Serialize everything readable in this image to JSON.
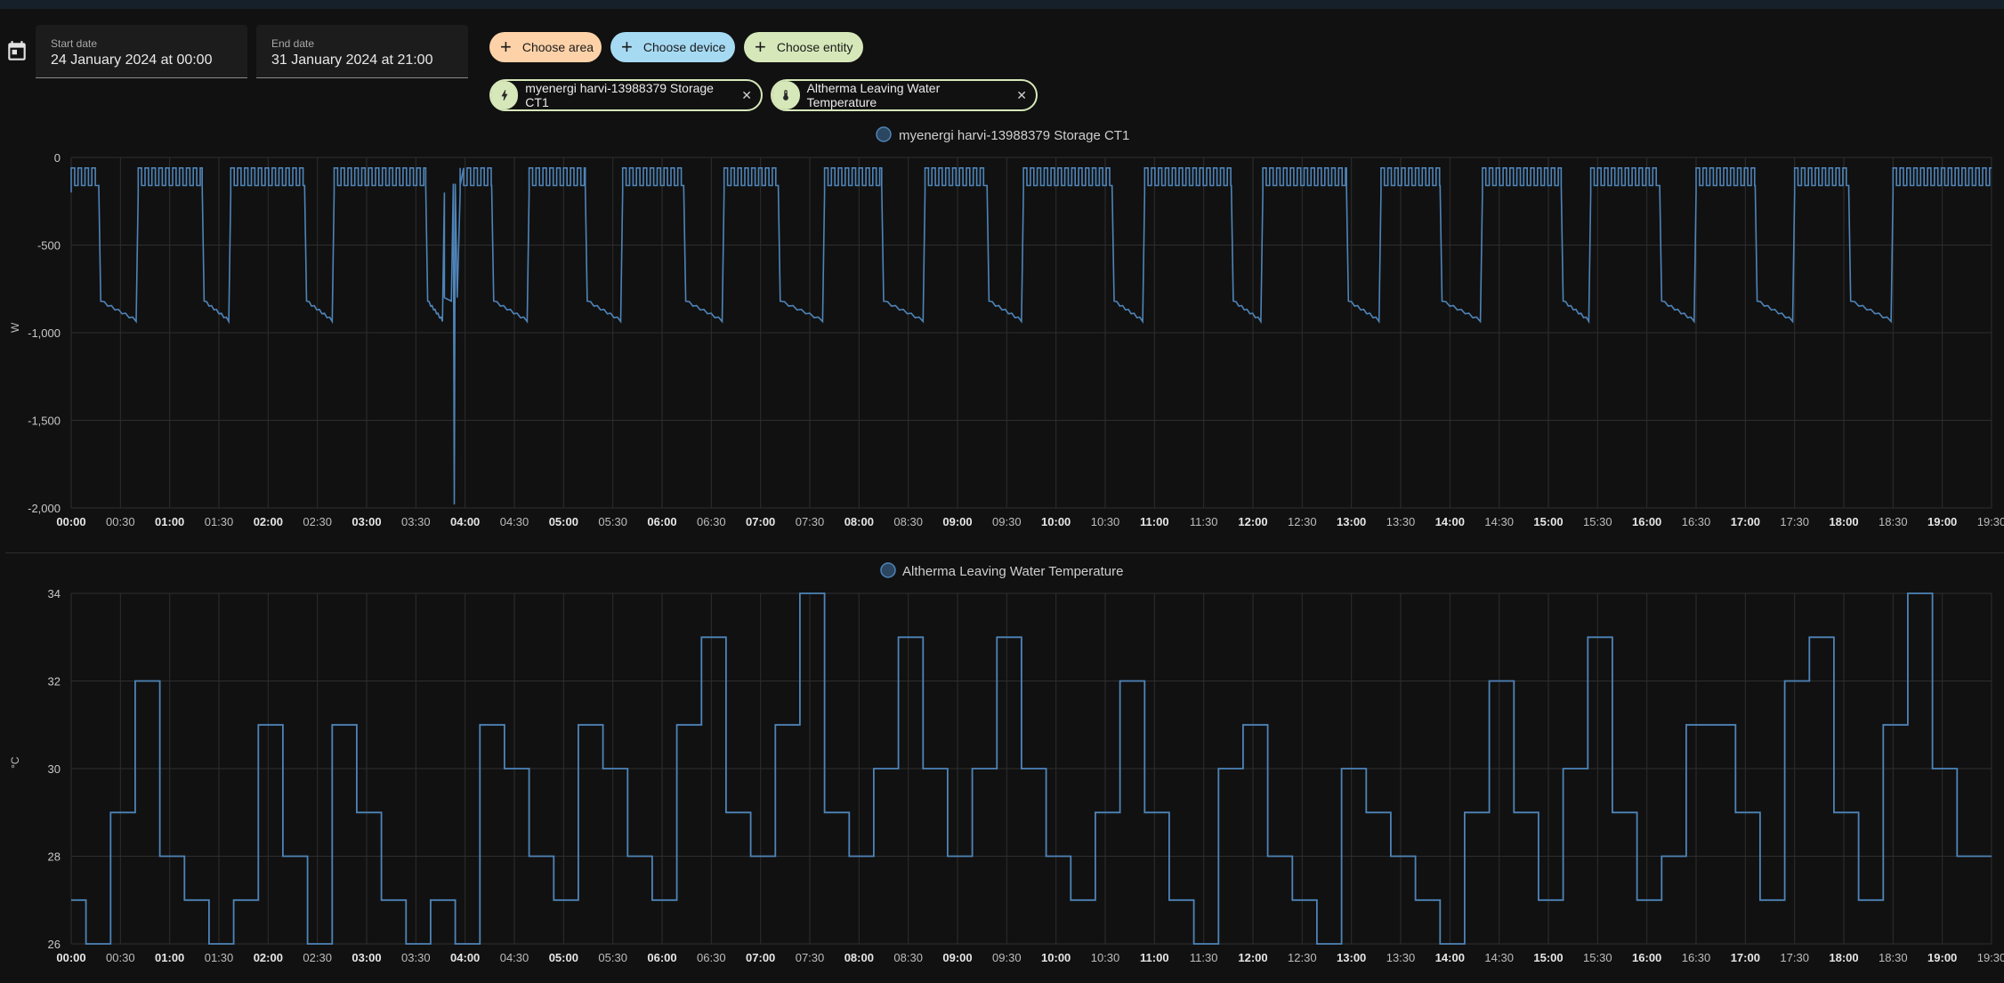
{
  "header": {
    "start_date": {
      "label": "Start date",
      "value": "24 January 2024 at 00:00"
    },
    "end_date": {
      "label": "End date",
      "value": "31 January 2024 at 21:00"
    },
    "choose_area": "Choose area",
    "choose_device": "Choose device",
    "choose_entity": "Choose entity",
    "selected_entities": [
      {
        "label": "myenergi harvi-13988379 Storage CT1",
        "icon": "lightning-bolt-icon"
      },
      {
        "label": "Altherma Leaving Water Temperature",
        "icon": "thermometer-icon"
      }
    ]
  },
  "colors": {
    "accent": "#4e84b8",
    "background": "#111111",
    "grid": "#2e2e2e"
  },
  "chart_data": [
    {
      "type": "line",
      "title": "myenergi harvi-13988379 Storage CT1",
      "ylabel": "W",
      "ylim": [
        -2000,
        0
      ],
      "yticks": [
        0,
        -500,
        -1000,
        -1500,
        -2000
      ],
      "ytick_labels": [
        "0",
        "-500",
        "-1,000",
        "-1,500",
        "-2,000"
      ],
      "xlim": [
        0,
        19.5
      ],
      "xtick_labels": [
        "00:00",
        "00:30",
        "01:00",
        "01:30",
        "02:00",
        "02:30",
        "03:00",
        "03:30",
        "04:00",
        "04:30",
        "05:00",
        "05:30",
        "06:00",
        "06:30",
        "07:00",
        "07:30",
        "08:00",
        "08:30",
        "09:00",
        "09:30",
        "10:00",
        "10:30",
        "11:00",
        "11:30",
        "12:00",
        "12:30",
        "13:00",
        "13:30",
        "14:00",
        "14:30",
        "15:00",
        "15:30",
        "16:00",
        "16:30",
        "17:00",
        "17:30",
        "18:00",
        "18:30",
        "19:00",
        "19:30"
      ],
      "series": [
        {
          "name": "myenergi harvi-13988379 Storage CT1",
          "cycles": [
            [
              0.0,
              0.28,
              0.68
            ],
            [
              0.68,
              1.33,
              1.62
            ],
            [
              1.62,
              2.37,
              2.67
            ],
            [
              2.67,
              3.6,
              3.79
            ],
            [
              3.95,
              4.27,
              4.65
            ],
            [
              4.65,
              5.22,
              5.6
            ],
            [
              5.6,
              6.22,
              6.63
            ],
            [
              6.63,
              7.18,
              7.65
            ],
            [
              7.65,
              8.23,
              8.67
            ],
            [
              8.67,
              9.3,
              9.67
            ],
            [
              9.67,
              10.57,
              10.9
            ],
            [
              10.9,
              11.78,
              12.1
            ],
            [
              12.1,
              12.95,
              13.3
            ],
            [
              13.3,
              13.9,
              14.33
            ],
            [
              14.33,
              15.13,
              15.43
            ],
            [
              15.43,
              16.13,
              16.5
            ],
            [
              16.5,
              17.1,
              17.5
            ],
            [
              17.5,
              18.05,
              18.5
            ],
            [
              18.5,
              19.5,
              19.5
            ]
          ],
          "high_level": -100,
          "low_start": -820,
          "low_end": -930,
          "spike": {
            "x": 3.89,
            "y": -1980
          }
        }
      ]
    },
    {
      "type": "line",
      "title": "Altherma Leaving Water Temperature",
      "ylabel": "°C",
      "ylim": [
        26,
        34
      ],
      "yticks": [
        26,
        28,
        30,
        32,
        34
      ],
      "ytick_labels": [
        "26",
        "28",
        "30",
        "32",
        "34"
      ],
      "xlim": [
        0,
        19.5
      ],
      "xtick_labels": [
        "00:00",
        "00:30",
        "01:00",
        "01:30",
        "02:00",
        "02:30",
        "03:00",
        "03:30",
        "04:00",
        "04:30",
        "05:00",
        "05:30",
        "06:00",
        "06:30",
        "07:00",
        "07:30",
        "08:00",
        "08:30",
        "09:00",
        "09:30",
        "10:00",
        "10:30",
        "11:00",
        "11:30",
        "12:00",
        "12:30",
        "13:00",
        "13:30",
        "14:00",
        "14:30",
        "15:00",
        "15:30",
        "16:00",
        "16:30",
        "17:00",
        "17:30",
        "18:00",
        "18:30",
        "19:00",
        "19:30"
      ],
      "series": [
        {
          "name": "Altherma Leaving Water Temperature",
          "x": [
            0,
            0.15,
            0.4,
            0.65,
            0.9,
            1.15,
            1.4,
            1.65,
            1.9,
            2.15,
            2.4,
            2.65,
            2.9,
            3.15,
            3.4,
            3.65,
            3.9,
            4.15,
            4.4,
            4.65,
            4.9,
            5.15,
            5.4,
            5.65,
            5.9,
            6.15,
            6.4,
            6.65,
            6.9,
            7.15,
            7.4,
            7.65,
            7.9,
            8.15,
            8.4,
            8.65,
            8.9,
            9.15,
            9.4,
            9.65,
            9.9,
            10.15,
            10.4,
            10.65,
            10.9,
            11.15,
            11.4,
            11.65,
            11.9,
            12.15,
            12.4,
            12.65,
            12.9,
            13.15,
            13.4,
            13.65,
            13.9,
            14.15,
            14.4,
            14.65,
            14.9,
            15.15,
            15.4,
            15.65,
            15.9,
            16.15,
            16.4,
            16.65,
            16.9,
            17.15,
            17.4,
            17.65,
            17.9,
            18.15,
            18.4,
            18.65,
            18.9,
            19.15,
            19.4
          ],
          "values": [
            27,
            26,
            29,
            32,
            28,
            27,
            26,
            27,
            31,
            28,
            26,
            31,
            29,
            27,
            26,
            27,
            26,
            31,
            30,
            28,
            27,
            31,
            30,
            28,
            27,
            31,
            33,
            29,
            28,
            31,
            34,
            29,
            28,
            30,
            33,
            30,
            28,
            30,
            33,
            30,
            28,
            27,
            29,
            32,
            29,
            27,
            26,
            30,
            31,
            28,
            27,
            26,
            30,
            29,
            28,
            27,
            26,
            29,
            32,
            29,
            27,
            30,
            33,
            29,
            27,
            28,
            31,
            31,
            29,
            27,
            32,
            33,
            29,
            27,
            31,
            34,
            30,
            28,
            28
          ]
        }
      ]
    }
  ]
}
